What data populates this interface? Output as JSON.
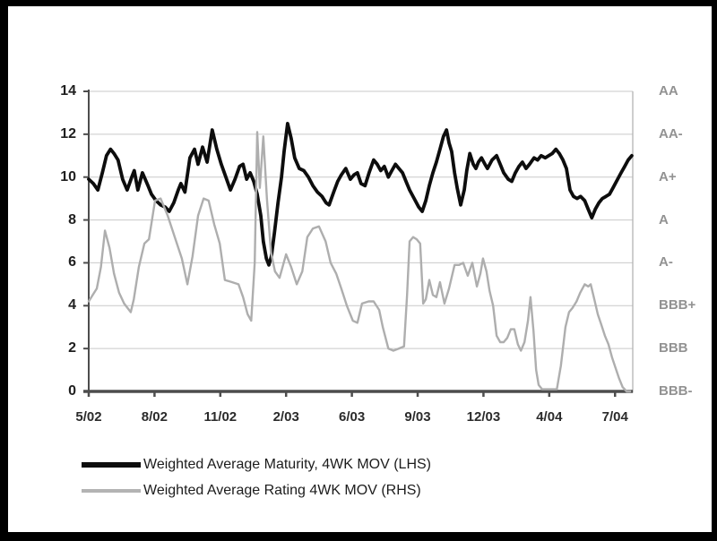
{
  "chart_data": {
    "type": "line",
    "title": "",
    "grid": true,
    "legend_position": "bottom-left",
    "x_axis": {
      "unit": "weeks since 5/02",
      "tick_weeks": [
        0,
        13,
        26,
        39,
        52,
        65,
        78,
        91,
        104
      ],
      "tick_labels": [
        "5/02",
        "8/02",
        "11/02",
        "2/03",
        "6/03",
        "9/03",
        "12/03",
        "4/04",
        "7/04"
      ],
      "max_week": 107.5
    },
    "y_axis_left": {
      "min": 0,
      "max": 14,
      "tick_step": 2,
      "ticks": [
        14,
        12,
        10,
        8,
        6,
        4,
        2,
        0
      ]
    },
    "y_axis_right": {
      "labels_top_to_bottom": [
        "AA",
        "AA-",
        "A+",
        "A",
        "A-",
        "BBB+",
        "BBB",
        "BBB-"
      ],
      "values": [
        14,
        12,
        10,
        8,
        6,
        4,
        2,
        0
      ]
    },
    "series": [
      {
        "name": "Weighted Average Maturity, 4WK MOV (LHS)",
        "axis": "left",
        "color": "#0d0d0d",
        "stroke_width": 3.8,
        "points": [
          [
            0,
            9.9
          ],
          [
            0.9,
            9.7
          ],
          [
            1.8,
            9.4
          ],
          [
            2.7,
            10.2
          ],
          [
            3.5,
            11
          ],
          [
            4.3,
            11.3
          ],
          [
            5,
            11.1
          ],
          [
            5.8,
            10.8
          ],
          [
            6.7,
            9.9
          ],
          [
            7.6,
            9.4
          ],
          [
            8.5,
            10
          ],
          [
            9,
            10.3
          ],
          [
            9.7,
            9.4
          ],
          [
            10.6,
            10.2
          ],
          [
            11.7,
            9.6
          ],
          [
            12.4,
            9.2
          ],
          [
            13.3,
            8.9
          ],
          [
            14.2,
            8.7
          ],
          [
            15.1,
            8.6
          ],
          [
            15.9,
            8.4
          ],
          [
            16.8,
            8.8
          ],
          [
            17.7,
            9.4
          ],
          [
            18.2,
            9.7
          ],
          [
            19,
            9.3
          ],
          [
            20,
            10.9
          ],
          [
            20.9,
            11.3
          ],
          [
            21.6,
            10.6
          ],
          [
            22.5,
            11.4
          ],
          [
            23.4,
            10.7
          ],
          [
            24.4,
            12.2
          ],
          [
            25.3,
            11.3
          ],
          [
            26.2,
            10.6
          ],
          [
            27.1,
            10
          ],
          [
            28,
            9.4
          ],
          [
            28.9,
            9.9
          ],
          [
            29.8,
            10.5
          ],
          [
            30.5,
            10.6
          ],
          [
            31.2,
            9.9
          ],
          [
            31.9,
            10.2
          ],
          [
            32.6,
            9.8
          ],
          [
            33.3,
            9.2
          ],
          [
            34,
            8.2
          ],
          [
            34.5,
            7
          ],
          [
            35.1,
            6.2
          ],
          [
            35.6,
            5.9
          ],
          [
            36.1,
            6.3
          ],
          [
            36.7,
            7.4
          ],
          [
            37.4,
            8.8
          ],
          [
            38.1,
            10
          ],
          [
            38.6,
            11.2
          ],
          [
            39.3,
            12.5
          ],
          [
            40,
            11.8
          ],
          [
            40.7,
            10.9
          ],
          [
            41.6,
            10.4
          ],
          [
            42.5,
            10.3
          ],
          [
            43.4,
            10
          ],
          [
            44.3,
            9.6
          ],
          [
            45.2,
            9.3
          ],
          [
            46.1,
            9.1
          ],
          [
            46.9,
            8.8
          ],
          [
            47.5,
            8.7
          ],
          [
            48.4,
            9.3
          ],
          [
            49.2,
            9.8
          ],
          [
            49.9,
            10.1
          ],
          [
            50.8,
            10.4
          ],
          [
            51.7,
            9.9
          ],
          [
            52.4,
            10.1
          ],
          [
            53.1,
            10.2
          ],
          [
            53.8,
            9.7
          ],
          [
            54.6,
            9.6
          ],
          [
            55.4,
            10.2
          ],
          [
            56.3,
            10.8
          ],
          [
            57,
            10.6
          ],
          [
            57.7,
            10.3
          ],
          [
            58.4,
            10.5
          ],
          [
            59.2,
            10
          ],
          [
            59.9,
            10.3
          ],
          [
            60.6,
            10.6
          ],
          [
            61.3,
            10.4
          ],
          [
            62,
            10.2
          ],
          [
            62.7,
            9.8
          ],
          [
            63.4,
            9.4
          ],
          [
            64.3,
            9
          ],
          [
            65.2,
            8.6
          ],
          [
            65.9,
            8.4
          ],
          [
            66.6,
            8.9
          ],
          [
            67.3,
            9.6
          ],
          [
            68,
            10.2
          ],
          [
            68.7,
            10.7
          ],
          [
            69.4,
            11.3
          ],
          [
            70.1,
            11.9
          ],
          [
            70.7,
            12.2
          ],
          [
            71.2,
            11.6
          ],
          [
            71.7,
            11.2
          ],
          [
            72.3,
            10.2
          ],
          [
            72.8,
            9.5
          ],
          [
            73.5,
            8.7
          ],
          [
            74.2,
            9.4
          ],
          [
            74.7,
            10.3
          ],
          [
            75.3,
            11.1
          ],
          [
            76,
            10.6
          ],
          [
            76.5,
            10.4
          ],
          [
            77,
            10.7
          ],
          [
            77.6,
            10.9
          ],
          [
            78.3,
            10.6
          ],
          [
            78.8,
            10.4
          ],
          [
            79.7,
            10.8
          ],
          [
            80.6,
            11
          ],
          [
            81.3,
            10.6
          ],
          [
            82,
            10.2
          ],
          [
            82.9,
            9.9
          ],
          [
            83.6,
            9.8
          ],
          [
            84.3,
            10.2
          ],
          [
            85,
            10.5
          ],
          [
            85.7,
            10.7
          ],
          [
            86.4,
            10.4
          ],
          [
            87.1,
            10.6
          ],
          [
            88,
            10.9
          ],
          [
            88.7,
            10.8
          ],
          [
            89.4,
            11
          ],
          [
            90.2,
            10.9
          ],
          [
            90.9,
            11
          ],
          [
            91.6,
            11.1
          ],
          [
            92.3,
            11.3
          ],
          [
            93,
            11.1
          ],
          [
            93.7,
            10.8
          ],
          [
            94.4,
            10.4
          ],
          [
            95.1,
            9.4
          ],
          [
            95.8,
            9.1
          ],
          [
            96.5,
            9
          ],
          [
            97.2,
            9.1
          ],
          [
            98,
            8.9
          ],
          [
            98.7,
            8.5
          ],
          [
            99.4,
            8.1
          ],
          [
            100.1,
            8.5
          ],
          [
            100.8,
            8.8
          ],
          [
            101.5,
            9
          ],
          [
            102.2,
            9.1
          ],
          [
            102.9,
            9.2
          ],
          [
            103.6,
            9.5
          ],
          [
            104.5,
            9.9
          ],
          [
            105.2,
            10.2
          ],
          [
            105.9,
            10.5
          ],
          [
            106.6,
            10.8
          ],
          [
            107.3,
            11
          ]
        ]
      },
      {
        "name": "Weighted Average Rating 4WK MOV (RHS)",
        "axis": "right",
        "color": "#aeaeae",
        "stroke_width": 2.4,
        "points": [
          [
            0,
            4.2
          ],
          [
            0.8,
            4.5
          ],
          [
            1.6,
            4.8
          ],
          [
            2.4,
            5.8
          ],
          [
            3.2,
            7.5
          ],
          [
            4.1,
            6.7
          ],
          [
            5,
            5.5
          ],
          [
            6,
            4.6
          ],
          [
            7,
            4.1
          ],
          [
            8.3,
            3.7
          ],
          [
            8.9,
            4.3
          ],
          [
            9.9,
            5.8
          ],
          [
            11,
            6.9
          ],
          [
            11.9,
            7.1
          ],
          [
            13.1,
            8.9
          ],
          [
            14.2,
            9
          ],
          [
            15.6,
            8.2
          ],
          [
            17,
            7.2
          ],
          [
            18.4,
            6.2
          ],
          [
            19.5,
            5
          ],
          [
            20.5,
            6.3
          ],
          [
            21.6,
            8.2
          ],
          [
            22.7,
            9
          ],
          [
            23.7,
            8.9
          ],
          [
            24.8,
            7.8
          ],
          [
            25.9,
            6.9
          ],
          [
            26.9,
            5.2
          ],
          [
            28.3,
            5.1
          ],
          [
            29.6,
            5
          ],
          [
            30.5,
            4.4
          ],
          [
            31.4,
            3.6
          ],
          [
            32.1,
            3.3
          ],
          [
            32.8,
            6
          ],
          [
            33.3,
            12.1
          ],
          [
            33.8,
            9.5
          ],
          [
            34.5,
            11.9
          ],
          [
            35.2,
            9
          ],
          [
            36,
            6.5
          ],
          [
            36.8,
            5.6
          ],
          [
            37.7,
            5.3
          ],
          [
            39,
            6.4
          ],
          [
            40,
            5.8
          ],
          [
            41.1,
            5
          ],
          [
            42.2,
            5.6
          ],
          [
            43.2,
            7.2
          ],
          [
            44.3,
            7.6
          ],
          [
            45.5,
            7.7
          ],
          [
            46.8,
            7
          ],
          [
            47.8,
            6
          ],
          [
            48.9,
            5.5
          ],
          [
            49.9,
            4.8
          ],
          [
            51,
            4
          ],
          [
            52.2,
            3.3
          ],
          [
            53.1,
            3.2
          ],
          [
            54,
            4.1
          ],
          [
            55.3,
            4.2
          ],
          [
            56.3,
            4.2
          ],
          [
            57.4,
            3.8
          ],
          [
            58.1,
            3
          ],
          [
            59.2,
            2
          ],
          [
            60.2,
            1.9
          ],
          [
            61.3,
            2
          ],
          [
            62.3,
            2.1
          ],
          [
            62.9,
            4.5
          ],
          [
            63.4,
            7
          ],
          [
            64.1,
            7.2
          ],
          [
            64.8,
            7.1
          ],
          [
            65.5,
            6.9
          ],
          [
            66.1,
            4.1
          ],
          [
            66.6,
            4.3
          ],
          [
            67.3,
            5.2
          ],
          [
            68,
            4.5
          ],
          [
            68.7,
            4.4
          ],
          [
            69.4,
            5.1
          ],
          [
            70.3,
            4.1
          ],
          [
            71.2,
            4.8
          ],
          [
            72.3,
            5.9
          ],
          [
            73.2,
            5.9
          ],
          [
            74,
            6
          ],
          [
            74.9,
            5.4
          ],
          [
            75.8,
            6
          ],
          [
            76.7,
            4.9
          ],
          [
            77.4,
            5.5
          ],
          [
            77.9,
            6.2
          ],
          [
            78.6,
            5.6
          ],
          [
            79.2,
            4.7
          ],
          [
            79.9,
            4
          ],
          [
            80.6,
            2.6
          ],
          [
            81.3,
            2.3
          ],
          [
            82,
            2.3
          ],
          [
            82.7,
            2.5
          ],
          [
            83.4,
            2.9
          ],
          [
            84.1,
            2.9
          ],
          [
            84.8,
            2.2
          ],
          [
            85.4,
            1.9
          ],
          [
            86.1,
            2.3
          ],
          [
            86.8,
            3.3
          ],
          [
            87.3,
            4.4
          ],
          [
            87.9,
            2.8
          ],
          [
            88.4,
            1
          ],
          [
            88.9,
            0.3
          ],
          [
            89.6,
            0.1
          ],
          [
            91.2,
            0.1
          ],
          [
            92.5,
            0.1
          ],
          [
            93.3,
            1.2
          ],
          [
            94.2,
            3
          ],
          [
            94.9,
            3.7
          ],
          [
            95.6,
            3.9
          ],
          [
            96.4,
            4.2
          ],
          [
            97.1,
            4.6
          ],
          [
            98,
            5
          ],
          [
            98.7,
            4.9
          ],
          [
            99.2,
            5
          ],
          [
            99.9,
            4.3
          ],
          [
            100.6,
            3.6
          ],
          [
            101.3,
            3.1
          ],
          [
            102,
            2.6
          ],
          [
            102.7,
            2.2
          ],
          [
            103.4,
            1.6
          ],
          [
            104.1,
            1.1
          ],
          [
            104.8,
            0.6
          ],
          [
            105.5,
            0.2
          ],
          [
            106.3,
            0
          ],
          [
            107,
            0
          ]
        ]
      }
    ],
    "colors": {
      "gridline": "#c9c9c9",
      "axis": "#4d4d4d",
      "plot_right_border": "#b3b3b3",
      "left_tick_label": "#1f1f1f",
      "right_tick_label": "#929292",
      "frame": "#000000",
      "background": "#ffffff"
    }
  },
  "legend": {
    "items": [
      {
        "label": "Weighted Average Maturity, 4WK MOV (LHS)",
        "color": "#0d0d0d",
        "thickness": 6
      },
      {
        "label": "Weighted Average Rating 4WK MOV (RHS)",
        "color": "#b3b3b3",
        "thickness": 4
      }
    ]
  }
}
